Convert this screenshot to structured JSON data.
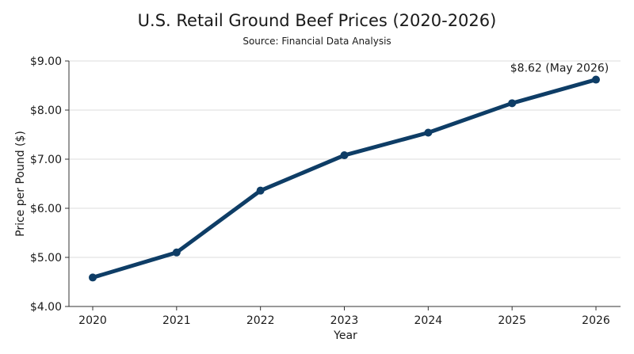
{
  "chart_data": {
    "type": "line",
    "title": "U.S. Retail Ground Beef Prices (2020-2026)",
    "subtitle": "Source: Financial Data Analysis",
    "xlabel": "Year",
    "ylabel": "Price per Pound ($)",
    "categories": [
      "2020",
      "2021",
      "2022",
      "2023",
      "2024",
      "2025",
      "2026"
    ],
    "series": [
      {
        "values": [
          4.59,
          5.1,
          6.36,
          7.08,
          7.54,
          8.14,
          8.62
        ]
      }
    ],
    "ylim": [
      4.0,
      9.0
    ],
    "yticks": [
      4.0,
      5.0,
      6.0,
      7.0,
      8.0,
      9.0
    ],
    "ytick_labels": [
      "$4.00",
      "$5.00",
      "$6.00",
      "$7.00",
      "$8.00",
      "$9.00"
    ],
    "grid": "horizontal",
    "annotation": {
      "text": "$8.62 (May 2026)",
      "category": "2026",
      "value": 8.62
    },
    "colors": {
      "line": "#0e3d66",
      "grid": "#dcdcdc",
      "axis": "#333333"
    }
  }
}
